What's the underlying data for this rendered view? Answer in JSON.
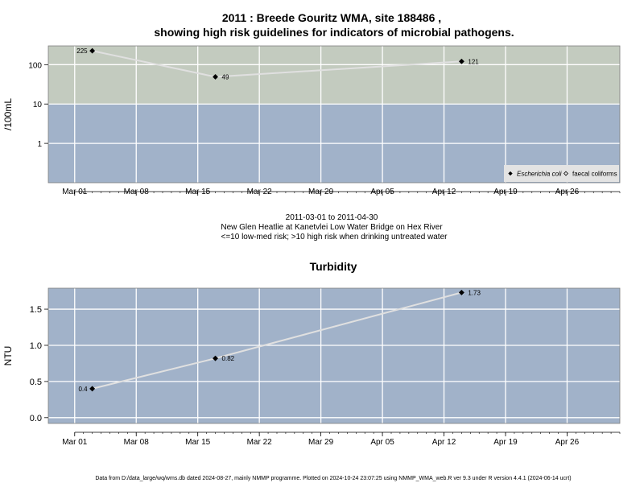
{
  "header": {
    "title_line1": "2011 : Breede Gouritz WMA, site 188486 ,",
    "title_line2": "showing high risk guidelines for indicators of microbial pathogens."
  },
  "caption": {
    "line1": "2011-03-01 to 2011-04-30",
    "line2": "New Glen Heatlie at Kanetvlei Low Water Bridge on Hex River",
    "line3": "<=10 low-med risk; >10 high risk when drinking untreated water"
  },
  "footer": {
    "text": "Data from D:/data_large/wq/wms.db dated 2024-08-27, mainly NMMP programme. Plotted on 2024-10-24 23:07:25 using NMMP_WMA_web.R ver 9.3 under R version 4.4.1 (2024-06-14 ucrt)"
  },
  "colors": {
    "high_risk_band": "#c3cbbf",
    "low_risk_band": "#a1b2c9",
    "line": "#e0e0e0",
    "grid": "#ffffff",
    "legend_bg": "#e3e3e3"
  },
  "chart_data": [
    {
      "type": "line",
      "title": "",
      "ylabel": "/100mL",
      "yscale": "log",
      "x_tick_labels": [
        "Mar 01",
        "Mar 08",
        "Mar 15",
        "Mar 22",
        "Mar 29",
        "Apr 05",
        "Apr 12",
        "Apr 19",
        "Apr 26"
      ],
      "x_tick_dates": [
        "2011-03-01",
        "2011-03-08",
        "2011-03-15",
        "2011-03-22",
        "2011-03-29",
        "2011-04-05",
        "2011-04-12",
        "2011-04-19",
        "2011-04-26"
      ],
      "xlim": [
        "2011-02-26",
        "2011-05-02"
      ],
      "y_tick_labels": [
        "1",
        "10",
        "100"
      ],
      "y_ticks": [
        1,
        10,
        100
      ],
      "ylim": [
        0.1,
        300
      ],
      "threshold": 10,
      "series": [
        {
          "name": "Escherichia coli",
          "x": [
            "2011-03-03",
            "2011-03-17",
            "2011-04-14"
          ],
          "values": [
            225,
            49,
            121
          ],
          "labels": [
            "225",
            "49",
            "121"
          ],
          "marker": "filled-diamond"
        }
      ],
      "legend": {
        "position": "bottom-right",
        "entries": [
          {
            "label": "Escherichia coli",
            "marker": "filled-diamond",
            "italic": true
          },
          {
            "label": "faecal coliforms",
            "marker": "open-diamond",
            "italic": false
          }
        ]
      }
    },
    {
      "type": "line",
      "title": "Turbidity",
      "ylabel": "NTU",
      "yscale": "linear",
      "x_tick_labels": [
        "Mar 01",
        "Mar 08",
        "Mar 15",
        "Mar 22",
        "Mar 29",
        "Apr 05",
        "Apr 12",
        "Apr 19",
        "Apr 26"
      ],
      "x_tick_dates": [
        "2011-03-01",
        "2011-03-08",
        "2011-03-15",
        "2011-03-22",
        "2011-03-29",
        "2011-04-05",
        "2011-04-12",
        "2011-04-19",
        "2011-04-26"
      ],
      "xlim": [
        "2011-02-26",
        "2011-05-02"
      ],
      "y_tick_labels": [
        "0.0",
        "0.5",
        "1.0",
        "1.5"
      ],
      "y_ticks": [
        0,
        0.5,
        1.0,
        1.5
      ],
      "ylim": [
        -0.08,
        1.79
      ],
      "series": [
        {
          "x": [
            "2011-03-03",
            "2011-03-17",
            "2011-04-14"
          ],
          "values": [
            0.4,
            0.82,
            1.73
          ],
          "labels": [
            "0.4",
            "0.82",
            "1.73"
          ],
          "marker": "filled-diamond"
        }
      ]
    }
  ]
}
